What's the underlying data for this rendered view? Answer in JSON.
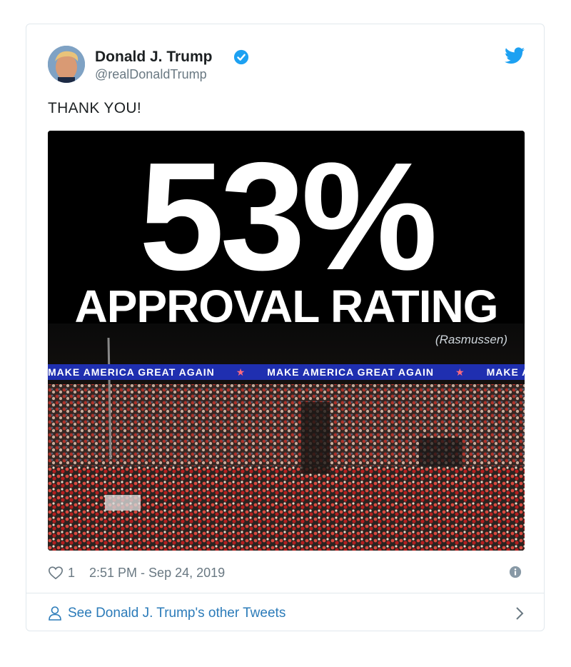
{
  "author": {
    "display_name": "Donald J. Trump",
    "handle": "@realDonaldTrump"
  },
  "tweet": {
    "text": "THANK YOU!"
  },
  "media": {
    "headline_number": "53%",
    "headline_text": "APPROVAL RATING",
    "source": "(Rasmussen)",
    "banner_text": "MAKE AMERICA GREAT AGAIN"
  },
  "footer": {
    "like_count": "1",
    "timestamp": "2:51 PM - Sep 24, 2019"
  },
  "more_tweets_label": "See Donald J. Trump's other Tweets",
  "colors": {
    "twitter_blue": "#1da1f2",
    "link_blue": "#2b7bb9",
    "muted_gray": "#697882",
    "banner_blue": "#1f2fb0"
  },
  "icons": [
    "verified-badge-icon",
    "twitter-bird-icon",
    "heart-icon",
    "info-icon",
    "person-icon",
    "chevron-right-icon"
  ]
}
